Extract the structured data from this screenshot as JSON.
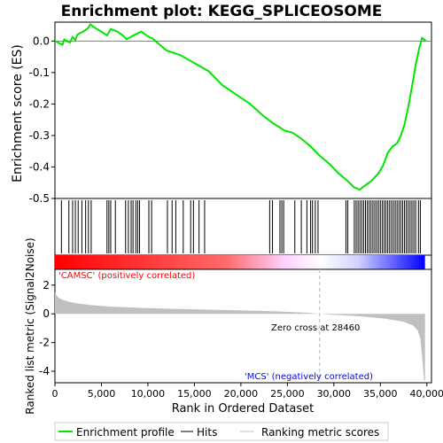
{
  "chart_data": {
    "type": "line",
    "title": "Enrichment plot: KEGG_SPLICEOSOME",
    "xlabel": "Rank in Ordered Dataset",
    "es_panel": {
      "ylabel": "Enrichment score (ES)",
      "ylim": [
        -0.5,
        0.06
      ],
      "yticks": [
        0.0,
        -0.1,
        -0.2,
        -0.3,
        -0.4,
        -0.5
      ],
      "line_color": "#00e600",
      "series": [
        {
          "name": "Enrichment profile",
          "points": [
            [
              0,
              0.0
            ],
            [
              800,
              -0.012
            ],
            [
              1000,
              0.005
            ],
            [
              1600,
              -0.005
            ],
            [
              1900,
              0.013
            ],
            [
              2200,
              0.003
            ],
            [
              2400,
              0.02
            ],
            [
              2700,
              0.025
            ],
            [
              3000,
              0.03
            ],
            [
              3300,
              0.035
            ],
            [
              3600,
              0.042
            ],
            [
              3800,
              0.053
            ],
            [
              4300,
              0.042
            ],
            [
              5000,
              0.03
            ],
            [
              5600,
              0.018
            ],
            [
              6000,
              0.038
            ],
            [
              6700,
              0.03
            ],
            [
              7200,
              0.02
            ],
            [
              7700,
              0.006
            ],
            [
              8100,
              0.012
            ],
            [
              8600,
              0.02
            ],
            [
              9300,
              0.03
            ],
            [
              10000,
              0.015
            ],
            [
              10500,
              0.008
            ],
            [
              12000,
              -0.03
            ],
            [
              13500,
              -0.045
            ],
            [
              15000,
              -0.07
            ],
            [
              16500,
              -0.095
            ],
            [
              18000,
              -0.14
            ],
            [
              19500,
              -0.17
            ],
            [
              21000,
              -0.2
            ],
            [
              22500,
              -0.24
            ],
            [
              23500,
              -0.262
            ],
            [
              24200,
              -0.275
            ],
            [
              24700,
              -0.285
            ],
            [
              25500,
              -0.29
            ],
            [
              26500,
              -0.31
            ],
            [
              27500,
              -0.335
            ],
            [
              28500,
              -0.365
            ],
            [
              29500,
              -0.39
            ],
            [
              30500,
              -0.42
            ],
            [
              31500,
              -0.445
            ],
            [
              32200,
              -0.465
            ],
            [
              32800,
              -0.472
            ],
            [
              33300,
              -0.46
            ],
            [
              34000,
              -0.445
            ],
            [
              34800,
              -0.42
            ],
            [
              35300,
              -0.395
            ],
            [
              35800,
              -0.355
            ],
            [
              36300,
              -0.335
            ],
            [
              36800,
              -0.325
            ],
            [
              37200,
              -0.3
            ],
            [
              37600,
              -0.265
            ],
            [
              38000,
              -0.21
            ],
            [
              38400,
              -0.145
            ],
            [
              38800,
              -0.075
            ],
            [
              39200,
              -0.02
            ],
            [
              39500,
              0.01
            ],
            [
              39900,
              0.0
            ]
          ]
        }
      ]
    },
    "hits_panel": {
      "ranks": [
        700,
        1500,
        1900,
        2200,
        2500,
        2900,
        3300,
        3600,
        3900,
        5600,
        5800,
        6000,
        6500,
        7600,
        7900,
        8200,
        8400,
        8700,
        8900,
        9100,
        10100,
        10400,
        12100,
        12600,
        13000,
        13800,
        14600,
        14900,
        15500,
        16100,
        23100,
        23400,
        24200,
        24400,
        24600,
        25800,
        26500,
        27100,
        27500,
        27700,
        28000,
        28300,
        31300,
        31500,
        32200,
        32400,
        32600,
        32800,
        33000,
        33200,
        33400,
        33600,
        33800,
        34000,
        34200,
        34400,
        34600,
        34800,
        35000,
        35200,
        35400,
        35600,
        35800,
        36000,
        36200,
        36400,
        36600,
        36800,
        37000,
        37200,
        37400,
        37600,
        37800,
        38000,
        38200,
        38400,
        38600,
        38800,
        39100,
        39300
      ]
    },
    "heatmap_panel": {
      "from_color": "#ff0000",
      "mid_color": "#ffffff",
      "to_color": "#0000ff"
    },
    "metric_panel": {
      "ylabel": "Ranked list metric (Signal2Noise)",
      "ylim": [
        -4.8,
        3.1
      ],
      "yticks": [
        2,
        0,
        -2,
        -4
      ],
      "fill_color": "#c0c0c0",
      "zero_cross_label": "Zero cross at 28460",
      "zero_cross_rank": 28460,
      "positive_label": "'CAMSC' (positively correlated)",
      "negative_label": "'MCS' (negatively correlated)",
      "profile": [
        [
          0,
          1.5
        ],
        [
          150,
          1.3
        ],
        [
          400,
          1.12
        ],
        [
          800,
          0.98
        ],
        [
          1500,
          0.85
        ],
        [
          2500,
          0.72
        ],
        [
          4000,
          0.6
        ],
        [
          6000,
          0.5
        ],
        [
          9000,
          0.42
        ],
        [
          12000,
          0.36
        ],
        [
          16000,
          0.3
        ],
        [
          20000,
          0.24
        ],
        [
          24000,
          0.17
        ],
        [
          27000,
          0.08
        ],
        [
          28460,
          0.0
        ],
        [
          30000,
          -0.06
        ],
        [
          33000,
          -0.18
        ],
        [
          35500,
          -0.33
        ],
        [
          37500,
          -0.55
        ],
        [
          38500,
          -0.8
        ],
        [
          39000,
          -1.15
        ],
        [
          39300,
          -1.7
        ],
        [
          39500,
          -3.0
        ],
        [
          39700,
          -4.6
        ],
        [
          39800,
          -4.7
        ]
      ]
    },
    "x_axis": {
      "xlim": [
        0,
        40500
      ],
      "xticks": [
        0,
        5000,
        10000,
        15000,
        20000,
        25000,
        30000,
        35000,
        40000
      ],
      "xtick_labels": [
        "0",
        "5,000",
        "10,000",
        "15,000",
        "20,000",
        "25,000",
        "30,000",
        "35,000",
        "40,000"
      ]
    },
    "legend": {
      "placement": "bottom",
      "entries": [
        {
          "label": "Enrichment profile",
          "color": "#00e600"
        },
        {
          "label": "Hits",
          "color": "#000000"
        },
        {
          "label": "Ranking metric scores",
          "color": "#c0c0c0"
        }
      ]
    }
  }
}
